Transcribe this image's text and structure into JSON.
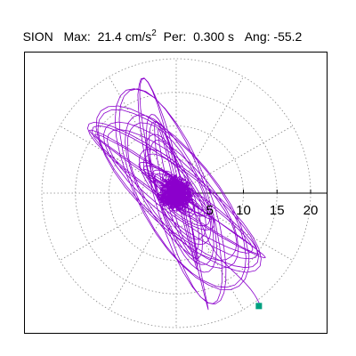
{
  "header": {
    "station": "SION",
    "max_label": "Max:",
    "max_value": "21.4 cm/s",
    "max_exponent": "2",
    "per_label": "Per:",
    "per_value": "0.300 s",
    "ang_label": "Ang:",
    "ang_value": "-55.2"
  },
  "plot": {
    "type": "polar-particle-motion",
    "radial_ticks": [
      "5",
      "10",
      "15",
      "20"
    ],
    "radial_values": [
      5,
      10,
      15,
      20
    ],
    "ring_radii": [
      5,
      10,
      15,
      20
    ],
    "max_radius": 21.4,
    "grid": "dotted",
    "trace_color": "#8B00CC",
    "end_marker_color": "#00A080",
    "end_point": {
      "x": 12.3,
      "y": -16.8
    }
  },
  "colors": {
    "trace": "#8B00CC",
    "marker": "#00A080",
    "grid": "#888888",
    "frame": "#000000"
  }
}
